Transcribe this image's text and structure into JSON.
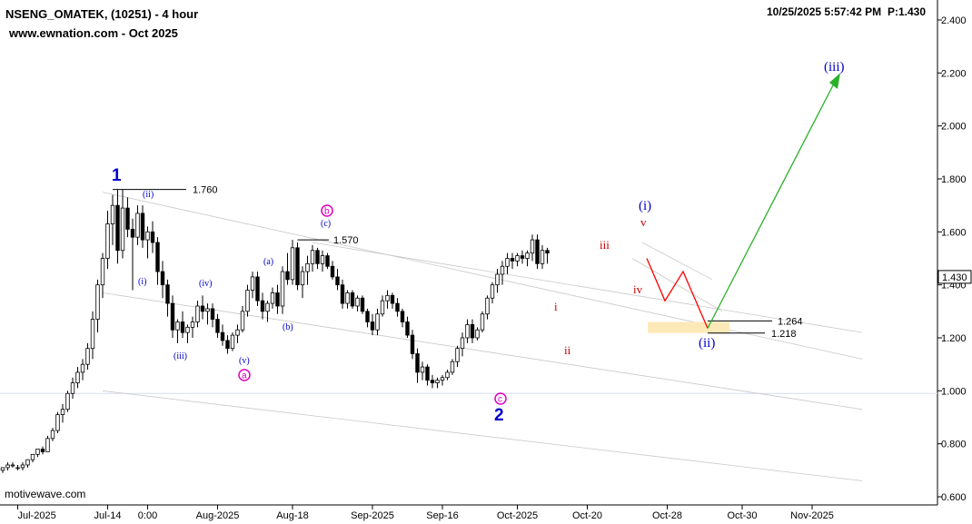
{
  "header": {
    "symbol_line": "NSENG_OMATEK, (10251) - 4 hour",
    "site_line": "www.ewnation.com  - Oct 2025",
    "timestamp": "10/25/2025 5:57:42 PM",
    "price_readout": "P:1.430"
  },
  "watermark": "motivewave.com",
  "colors": {
    "up": "#ffffff",
    "down": "#000000",
    "primary_wave": "#0000cc",
    "minor_wave": "#0000cc",
    "sub_wave_red": "#cc0000",
    "abc_magenta": "#e000c0",
    "projection_up": "#2ab02a",
    "projection_path": "#ff0000",
    "channel": "#c8c8c8",
    "target_zone": "#fde9b8",
    "reference_line": "#d8dcf0"
  },
  "chart_data": {
    "type": "candlestick",
    "title": "NSENG_OMATEK, (10251) - 4 hour",
    "ylim": [
      0.6,
      2.4
    ],
    "y_ticks": [
      0.6,
      0.8,
      1.0,
      1.2,
      1.4,
      1.6,
      1.8,
      2.0,
      2.2,
      2.4
    ],
    "y_tick_labels": [
      "0.600",
      "0.800",
      "1.000",
      "1.200",
      "1.400",
      "1.600",
      "1.800",
      "2.000",
      "2.200",
      "2.400"
    ],
    "x_tick_labels": [
      {
        "i": 3,
        "label": "Jul-2025"
      },
      {
        "i": 21,
        "label": "Jul-14"
      },
      {
        "i": 29,
        "label": "0:00"
      },
      {
        "i": 43,
        "label": "Aug-2025"
      },
      {
        "i": 58,
        "label": "Aug-18"
      },
      {
        "i": 74,
        "label": "Sep-2025"
      },
      {
        "i": 88,
        "label": "Sep-16"
      },
      {
        "i": 103,
        "label": "Oct-2025"
      },
      {
        "i": 117,
        "label": "Oct-20"
      },
      {
        "i": 133,
        "label": "Oct-28"
      },
      {
        "i": 148,
        "label": "Oct-30"
      },
      {
        "i": 162,
        "label": "Nov-2025"
      }
    ],
    "last_price": 1.43,
    "last_price_label": "1.430",
    "reference_level": 0.99,
    "candles": [
      [
        0.7,
        0.71,
        0.69,
        0.71
      ],
      [
        0.71,
        0.73,
        0.7,
        0.72
      ],
      [
        0.72,
        0.73,
        0.71,
        0.72
      ],
      [
        0.71,
        0.72,
        0.7,
        0.71
      ],
      [
        0.71,
        0.73,
        0.7,
        0.72
      ],
      [
        0.72,
        0.74,
        0.71,
        0.74
      ],
      [
        0.74,
        0.76,
        0.73,
        0.76
      ],
      [
        0.76,
        0.78,
        0.75,
        0.78
      ],
      [
        0.78,
        0.79,
        0.76,
        0.77
      ],
      [
        0.77,
        0.83,
        0.77,
        0.82
      ],
      [
        0.82,
        0.86,
        0.81,
        0.85
      ],
      [
        0.85,
        0.92,
        0.84,
        0.91
      ],
      [
        0.91,
        0.95,
        0.88,
        0.93
      ],
      [
        0.93,
        1.0,
        0.92,
        0.99
      ],
      [
        0.99,
        1.05,
        0.97,
        1.03
      ],
      [
        1.03,
        1.09,
        1.01,
        1.07
      ],
      [
        1.07,
        1.12,
        1.04,
        1.1
      ],
      [
        1.1,
        1.18,
        1.08,
        1.16
      ],
      [
        1.16,
        1.3,
        1.12,
        1.27
      ],
      [
        1.27,
        1.42,
        1.22,
        1.4
      ],
      [
        1.4,
        1.52,
        1.35,
        1.5
      ],
      [
        1.5,
        1.68,
        1.46,
        1.63
      ],
      [
        1.63,
        1.74,
        1.55,
        1.7
      ],
      [
        1.7,
        1.76,
        1.48,
        1.53
      ],
      [
        1.53,
        1.76,
        1.5,
        1.69
      ],
      [
        1.69,
        1.73,
        1.58,
        1.61
      ],
      [
        1.61,
        1.65,
        1.38,
        1.58
      ],
      [
        1.58,
        1.7,
        1.55,
        1.67
      ],
      [
        1.67,
        1.7,
        1.54,
        1.57
      ],
      [
        1.57,
        1.62,
        1.5,
        1.6
      ],
      [
        1.6,
        1.64,
        1.52,
        1.56
      ],
      [
        1.56,
        1.58,
        1.4,
        1.45
      ],
      [
        1.45,
        1.49,
        1.35,
        1.4
      ],
      [
        1.4,
        1.42,
        1.28,
        1.33
      ],
      [
        1.33,
        1.36,
        1.2,
        1.23
      ],
      [
        1.23,
        1.27,
        1.18,
        1.26
      ],
      [
        1.26,
        1.3,
        1.2,
        1.22
      ],
      [
        1.22,
        1.25,
        1.18,
        1.24
      ],
      [
        1.24,
        1.28,
        1.2,
        1.26
      ],
      [
        1.26,
        1.34,
        1.24,
        1.32
      ],
      [
        1.32,
        1.36,
        1.27,
        1.3
      ],
      [
        1.3,
        1.33,
        1.25,
        1.31
      ],
      [
        1.31,
        1.33,
        1.24,
        1.27
      ],
      [
        1.27,
        1.29,
        1.2,
        1.22
      ],
      [
        1.22,
        1.25,
        1.17,
        1.19
      ],
      [
        1.19,
        1.21,
        1.14,
        1.16
      ],
      [
        1.16,
        1.22,
        1.15,
        1.21
      ],
      [
        1.21,
        1.25,
        1.18,
        1.23
      ],
      [
        1.23,
        1.32,
        1.22,
        1.3
      ],
      [
        1.3,
        1.4,
        1.28,
        1.38
      ],
      [
        1.38,
        1.45,
        1.35,
        1.43
      ],
      [
        1.43,
        1.45,
        1.32,
        1.34
      ],
      [
        1.34,
        1.37,
        1.27,
        1.3
      ],
      [
        1.3,
        1.34,
        1.26,
        1.33
      ],
      [
        1.33,
        1.39,
        1.31,
        1.37
      ],
      [
        1.37,
        1.4,
        1.29,
        1.32
      ],
      [
        1.32,
        1.47,
        1.29,
        1.45
      ],
      [
        1.45,
        1.52,
        1.4,
        1.42
      ],
      [
        1.42,
        1.57,
        1.4,
        1.54
      ],
      [
        1.54,
        1.56,
        1.38,
        1.4
      ],
      [
        1.4,
        1.47,
        1.35,
        1.45
      ],
      [
        1.45,
        1.51,
        1.4,
        1.48
      ],
      [
        1.48,
        1.55,
        1.45,
        1.53
      ],
      [
        1.53,
        1.54,
        1.46,
        1.48
      ],
      [
        1.48,
        1.53,
        1.45,
        1.51
      ],
      [
        1.51,
        1.52,
        1.46,
        1.47
      ],
      [
        1.47,
        1.49,
        1.42,
        1.43
      ],
      [
        1.43,
        1.46,
        1.38,
        1.4
      ],
      [
        1.4,
        1.42,
        1.31,
        1.33
      ],
      [
        1.33,
        1.38,
        1.31,
        1.37
      ],
      [
        1.37,
        1.38,
        1.31,
        1.32
      ],
      [
        1.32,
        1.36,
        1.3,
        1.35
      ],
      [
        1.35,
        1.36,
        1.29,
        1.3
      ],
      [
        1.3,
        1.31,
        1.24,
        1.26
      ],
      [
        1.26,
        1.29,
        1.21,
        1.23
      ],
      [
        1.23,
        1.31,
        1.21,
        1.29
      ],
      [
        1.29,
        1.36,
        1.28,
        1.34
      ],
      [
        1.34,
        1.38,
        1.31,
        1.36
      ],
      [
        1.36,
        1.37,
        1.31,
        1.33
      ],
      [
        1.33,
        1.35,
        1.28,
        1.3
      ],
      [
        1.3,
        1.31,
        1.24,
        1.26
      ],
      [
        1.26,
        1.28,
        1.2,
        1.21
      ],
      [
        1.21,
        1.23,
        1.12,
        1.14
      ],
      [
        1.14,
        1.16,
        1.03,
        1.07
      ],
      [
        1.07,
        1.11,
        1.04,
        1.09
      ],
      [
        1.09,
        1.1,
        1.02,
        1.04
      ],
      [
        1.04,
        1.06,
        1.01,
        1.03
      ],
      [
        1.03,
        1.05,
        1.01,
        1.04
      ],
      [
        1.04,
        1.06,
        1.02,
        1.05
      ],
      [
        1.05,
        1.08,
        1.04,
        1.07
      ],
      [
        1.07,
        1.12,
        1.06,
        1.11
      ],
      [
        1.11,
        1.17,
        1.09,
        1.16
      ],
      [
        1.16,
        1.22,
        1.13,
        1.2
      ],
      [
        1.2,
        1.27,
        1.18,
        1.25
      ],
      [
        1.25,
        1.27,
        1.18,
        1.2
      ],
      [
        1.2,
        1.24,
        1.19,
        1.23
      ],
      [
        1.23,
        1.3,
        1.22,
        1.29
      ],
      [
        1.29,
        1.36,
        1.27,
        1.35
      ],
      [
        1.35,
        1.41,
        1.33,
        1.4
      ],
      [
        1.4,
        1.46,
        1.37,
        1.44
      ],
      [
        1.44,
        1.49,
        1.4,
        1.47
      ],
      [
        1.47,
        1.52,
        1.44,
        1.5
      ],
      [
        1.5,
        1.52,
        1.46,
        1.49
      ],
      [
        1.49,
        1.52,
        1.47,
        1.51
      ],
      [
        1.51,
        1.53,
        1.48,
        1.5
      ],
      [
        1.5,
        1.53,
        1.47,
        1.52
      ],
      [
        1.52,
        1.59,
        1.49,
        1.57
      ],
      [
        1.57,
        1.59,
        1.46,
        1.48
      ],
      [
        1.48,
        1.55,
        1.46,
        1.53
      ],
      [
        1.53,
        1.54,
        1.48,
        1.52
      ]
    ],
    "label_candles": [
      {
        "i": 8,
        "label": "Jul-2025"
      }
    ]
  },
  "annotations": {
    "wave_1": "1",
    "wave_2": "2",
    "wave_i_minor": "(i)",
    "wave_ii_minor": "(ii)",
    "wave_iii_minor": "(iii)",
    "sub_ii": "(ii)",
    "sub_i": "(i)",
    "sub_iii": "(iii)",
    "sub_iv": "(iv)",
    "sub_v": "(v)",
    "sub_a": "(a)",
    "sub_b": "(b)",
    "sub_c": "(c)",
    "circ_a": "a",
    "circ_b": "b",
    "circ_c": "c",
    "red_i": "i",
    "red_ii": "ii",
    "red_iii": "iii",
    "red_iv": "iv",
    "red_v": "v",
    "level_1760": "1.760",
    "level_1570": "1.570",
    "level_1264": "1.264",
    "level_1218": "1.218"
  }
}
